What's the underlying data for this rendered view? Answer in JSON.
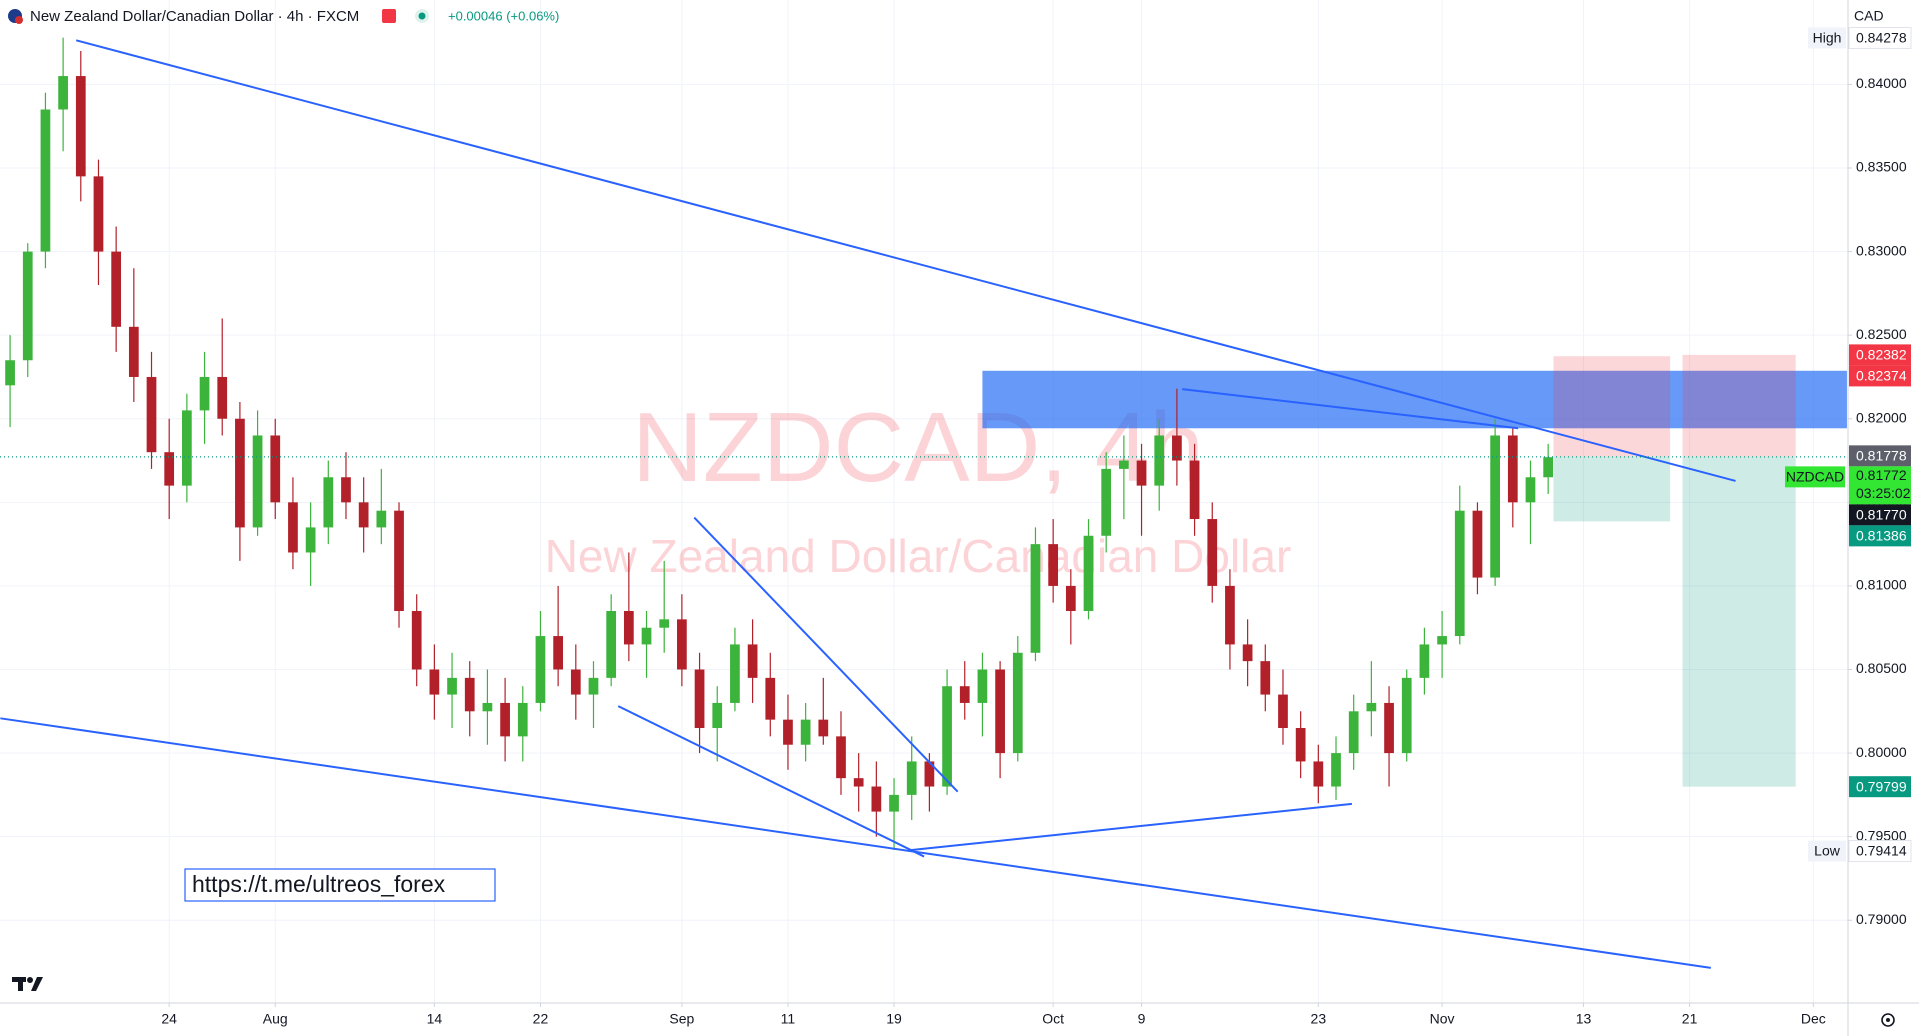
{
  "chart_data": {
    "type": "candlestick",
    "title": "New Zealand Dollar/Canadian Dollar · 4h · FXCM",
    "change": "+0.00046 (+0.06%)",
    "currency": "CAD",
    "watermark_symbol": "NZDCAD, 4h",
    "watermark_name": "New Zealand Dollar/Canadian Dollar",
    "link": "https://t.me/ultreos_forex",
    "up_color": "#3cb43c",
    "down_color": "#b2202a",
    "open": [
      0.822,
      0.8235,
      0.83,
      0.8385,
      0.8405,
      0.8345,
      0.83,
      0.8255,
      0.8225,
      0.818,
      0.816,
      0.8205,
      0.8225,
      0.82,
      0.8135,
      0.819,
      0.815,
      0.812,
      0.8135,
      0.8165,
      0.815,
      0.8135,
      0.8145,
      0.8085,
      0.805,
      0.8035,
      0.8045,
      0.8025,
      0.803,
      0.801,
      0.803,
      0.807,
      0.805,
      0.8035,
      0.8045,
      0.8085,
      0.8065,
      0.8075,
      0.808,
      0.805,
      0.8015,
      0.803,
      0.8065,
      0.8045,
      0.802,
      0.8005,
      0.802,
      0.801,
      0.7985,
      0.798,
      0.7965,
      0.7975,
      0.7995,
      0.798,
      0.804,
      0.803,
      0.805,
      0.8,
      0.806,
      0.8125,
      0.81,
      0.8085,
      0.813,
      0.817,
      0.8175,
      0.816,
      0.819,
      0.8175,
      0.814,
      0.81,
      0.8065,
      0.8055,
      0.8035,
      0.8015,
      0.7995,
      0.798,
      0.8,
      0.8025,
      0.803,
      0.8,
      0.8045,
      0.8065,
      0.807,
      0.8145,
      0.8105,
      0.819,
      0.815,
      0.8165
    ],
    "high": [
      0.825,
      0.8305,
      0.8395,
      0.8428,
      0.842,
      0.8355,
      0.8315,
      0.829,
      0.824,
      0.82,
      0.8215,
      0.824,
      0.826,
      0.821,
      0.8205,
      0.82,
      0.8165,
      0.815,
      0.8175,
      0.818,
      0.8165,
      0.817,
      0.815,
      0.8095,
      0.8065,
      0.806,
      0.8055,
      0.805,
      0.8045,
      0.804,
      0.8085,
      0.81,
      0.8065,
      0.8055,
      0.8095,
      0.812,
      0.8085,
      0.8115,
      0.8095,
      0.806,
      0.804,
      0.8075,
      0.808,
      0.806,
      0.8035,
      0.803,
      0.8045,
      0.8025,
      0.8,
      0.7995,
      0.7985,
      0.801,
      0.8,
      0.805,
      0.8055,
      0.806,
      0.8055,
      0.807,
      0.8135,
      0.814,
      0.811,
      0.814,
      0.818,
      0.819,
      0.8185,
      0.82,
      0.8218,
      0.8185,
      0.815,
      0.811,
      0.808,
      0.8065,
      0.805,
      0.8025,
      0.8005,
      0.801,
      0.8035,
      0.8055,
      0.804,
      0.805,
      0.8075,
      0.8085,
      0.816,
      0.815,
      0.82,
      0.8195,
      0.8175,
      0.8185
    ],
    "low": [
      0.8195,
      0.8225,
      0.829,
      0.836,
      0.833,
      0.828,
      0.824,
      0.821,
      0.817,
      0.814,
      0.815,
      0.8185,
      0.819,
      0.8115,
      0.813,
      0.814,
      0.811,
      0.81,
      0.8125,
      0.814,
      0.812,
      0.8125,
      0.8075,
      0.804,
      0.802,
      0.8015,
      0.801,
      0.8005,
      0.7995,
      0.7995,
      0.8025,
      0.804,
      0.802,
      0.8015,
      0.804,
      0.8055,
      0.8045,
      0.806,
      0.804,
      0.8,
      0.7995,
      0.8025,
      0.803,
      0.801,
      0.799,
      0.7995,
      0.8005,
      0.7975,
      0.7965,
      0.795,
      0.7942,
      0.796,
      0.7965,
      0.7975,
      0.802,
      0.801,
      0.7985,
      0.7995,
      0.8055,
      0.809,
      0.8065,
      0.808,
      0.812,
      0.814,
      0.813,
      0.8145,
      0.816,
      0.813,
      0.809,
      0.805,
      0.804,
      0.8025,
      0.8005,
      0.7985,
      0.797,
      0.7972,
      0.799,
      0.801,
      0.798,
      0.7995,
      0.8035,
      0.8045,
      0.8065,
      0.8095,
      0.81,
      0.8135,
      0.8125,
      0.8155
    ],
    "close": [
      0.8235,
      0.83,
      0.8385,
      0.8405,
      0.8345,
      0.83,
      0.8255,
      0.8225,
      0.818,
      0.816,
      0.8205,
      0.8225,
      0.82,
      0.8135,
      0.819,
      0.815,
      0.812,
      0.8135,
      0.8165,
      0.815,
      0.8135,
      0.8145,
      0.8085,
      0.805,
      0.8035,
      0.8045,
      0.8025,
      0.803,
      0.801,
      0.803,
      0.807,
      0.805,
      0.8035,
      0.8045,
      0.8085,
      0.8065,
      0.8075,
      0.808,
      0.805,
      0.8015,
      0.803,
      0.8065,
      0.8045,
      0.802,
      0.8005,
      0.802,
      0.801,
      0.7985,
      0.798,
      0.7965,
      0.7975,
      0.7995,
      0.798,
      0.804,
      0.803,
      0.805,
      0.8,
      0.806,
      0.8125,
      0.81,
      0.8085,
      0.813,
      0.817,
      0.8175,
      0.816,
      0.819,
      0.8175,
      0.814,
      0.81,
      0.8065,
      0.8055,
      0.8035,
      0.8015,
      0.7995,
      0.798,
      0.8,
      0.8025,
      0.803,
      0.8,
      0.8045,
      0.8065,
      0.807,
      0.8145,
      0.8105,
      0.819,
      0.815,
      0.8165,
      0.8177
    ],
    "xlim": [
      -0.57,
      103.96
    ],
    "xticks": [
      {
        "value": 9,
        "label": "24"
      },
      {
        "value": 15,
        "label": "Aug"
      },
      {
        "value": 24,
        "label": "14"
      },
      {
        "value": 30,
        "label": "22"
      },
      {
        "value": 38,
        "label": "Sep"
      },
      {
        "value": 44,
        "label": "11"
      },
      {
        "value": 50,
        "label": "19"
      },
      {
        "value": 59,
        "label": "Oct"
      },
      {
        "value": 64,
        "label": "9"
      },
      {
        "value": 74,
        "label": "23"
      },
      {
        "value": 81,
        "label": "Nov"
      },
      {
        "value": 89,
        "label": "13"
      },
      {
        "value": 95,
        "label": "21"
      },
      {
        "value": 102,
        "label": "Dec"
      }
    ],
    "ylim": [
      0.78505,
      0.84505
    ],
    "yticks": [
      {
        "value": 0.79,
        "label": "0.79000"
      },
      {
        "value": 0.795,
        "label": "0.79500"
      },
      {
        "value": 0.8,
        "label": "0.80000"
      },
      {
        "value": 0.805,
        "label": "0.80500"
      },
      {
        "value": 0.81,
        "label": "0.81000"
      },
      {
        "value": 0.815,
        "label": "0.81500"
      },
      {
        "value": 0.82,
        "label": "0.82000"
      },
      {
        "value": 0.825,
        "label": "0.82500"
      },
      {
        "value": 0.83,
        "label": "0.83000"
      },
      {
        "value": 0.835,
        "label": "0.83500"
      },
      {
        "value": 0.84,
        "label": "0.84000"
      }
    ],
    "grid": true,
    "zones": [
      {
        "x": [
          55.0,
          103.9
        ],
        "y": [
          0.82287,
          0.81943
        ],
        "color": "rgba(30,105,245,0.68)"
      }
    ],
    "trendlines": [
      {
        "from": [
          3.74,
          0.84264
        ],
        "to": [
          97.6,
          0.81628
        ],
        "color": "#2962ff"
      },
      {
        "from": [
          -0.55,
          0.80208
        ],
        "to": [
          96.2,
          0.78715
        ],
        "color": "#2962ff"
      },
      {
        "from": [
          38.7,
          0.81409
        ],
        "to": [
          53.6,
          0.79769
        ],
        "color": "#2962ff"
      },
      {
        "from": [
          34.4,
          0.80281
        ],
        "to": [
          51.7,
          0.79381
        ],
        "color": "#2962ff"
      },
      {
        "from": [
          50.8,
          0.79418
        ],
        "to": [
          75.9,
          0.79696
        ],
        "color": "#2962ff"
      },
      {
        "from": [
          66.3,
          0.82177
        ],
        "to": [
          85.3,
          0.81943
        ],
        "color": "#2962ff"
      }
    ],
    "positions": [
      {
        "x": [
          87.3,
          93.9
        ],
        "entry": 0.81772,
        "stop": 0.82374,
        "target": 0.81386
      },
      {
        "x": [
          94.6,
          101.0
        ],
        "entry": 0.81772,
        "stop": 0.82382,
        "target": 0.79799
      }
    ],
    "extremes": [
      {
        "label": "High",
        "value": 0.84278
      },
      {
        "label": "Low",
        "value": 0.79414
      }
    ],
    "symbol_tag": {
      "label": "NZDCAD",
      "value": 0.81772,
      "countdown": "03:25:02",
      "color": "#33e633"
    },
    "price_tags": [
      {
        "value": 0.82382,
        "color": "#f23645"
      },
      {
        "value": 0.82374,
        "color": "#f23645"
      },
      {
        "value": 0.81778,
        "color": "#5d606b"
      },
      {
        "value": 0.8177,
        "label": "0.81770",
        "color": "#131722"
      },
      {
        "value": 0.81386,
        "color": "#089981"
      },
      {
        "value": 0.79799,
        "color": "#089981"
      }
    ]
  }
}
